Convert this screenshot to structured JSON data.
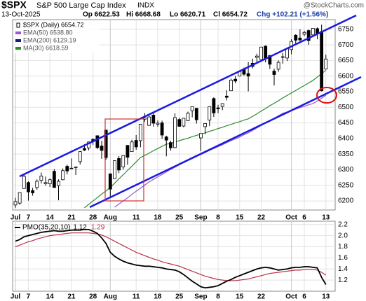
{
  "chart_data": [
    {
      "type": "candlestick",
      "title": "$SPX",
      "subtitle": "S&P 500 Large Cap Index",
      "exchange": "INDX",
      "source": "@StockCharts.com",
      "date": "13-Oct-2025",
      "quote": [
        "Op 6622.53",
        "Hi 6668.68",
        "Lo 6620.71",
        "Cl 6654.72",
        "Chg +102.21 (+1.56%)"
      ],
      "categories": [
        "Jul",
        null,
        null,
        "7",
        null,
        null,
        null,
        null,
        "14",
        null,
        null,
        null,
        null,
        "21",
        null,
        null,
        null,
        null,
        "28",
        null,
        null,
        null,
        "Aug",
        null,
        null,
        null,
        null,
        null,
        "11",
        null,
        null,
        null,
        null,
        "18",
        null,
        null,
        null,
        null,
        "25",
        null,
        null,
        null,
        null,
        "Sep",
        null,
        null,
        null,
        "8",
        null,
        null,
        null,
        null,
        "15",
        null,
        null,
        null,
        null,
        "22",
        null,
        null,
        null,
        null,
        null,
        null,
        "Oct",
        null,
        null,
        "6",
        null,
        null,
        null,
        null,
        "13"
      ],
      "series": [
        {
          "name": "$SPX (Daily) 6654.72",
          "color": "#000000",
          "open": [
            6187,
            6193,
            6240,
            6259,
            6233,
            6243,
            6266,
            6255,
            6255,
            6295,
            6249,
            6268,
            6311,
            6305,
            6307,
            6326,
            6368,
            6370,
            6397,
            6409,
            6376,
            6427,
            6287,
            6271,
            6336,
            6309,
            6378,
            6358,
            6394,
            6393,
            6462,
            6442,
            6475,
            6446,
            6450,
            6405,
            6387,
            6371,
            6461,
            6440,
            6457,
            6489,
            6497,
            6402,
            6438,
            6459,
            6528,
            6498,
            6503,
            6536,
            6553,
            6590,
            6600,
            6622,
            6608,
            6641,
            6660,
            6653,
            6696,
            6666,
            6616,
            6622,
            6662,
            6658,
            6685,
            6731,
            6722,
            6734,
            6746,
            6732,
            6752,
            6743,
            6622.53
          ],
          "high": [
            6210,
            6227,
            6284,
            6263,
            6242,
            6269,
            6291,
            6278,
            6272,
            6302,
            6269,
            6304,
            6316,
            6336,
            6310,
            6360,
            6382,
            6390,
            6401,
            6410,
            6393,
            6428,
            6288,
            6330,
            6344,
            6346,
            6379,
            6396,
            6411,
            6446,
            6481,
            6474,
            6481,
            6458,
            6457,
            6409,
            6393,
            6481,
            6467,
            6466,
            6486,
            6502,
            6497,
            6416,
            6449,
            6502,
            6532,
            6508,
            6513,
            6555,
            6592,
            6601,
            6616,
            6627,
            6645,
            6656,
            6672,
            6693,
            6698,
            6667,
            6624,
            6650,
            6674,
            6691,
            6718,
            6734,
            6750,
            6745,
            6749,
            6754,
            6756,
            6765,
            6668.68
          ],
          "low": [
            6178,
            6188,
            6240,
            6201,
            6217,
            6236,
            6256,
            6249,
            6245,
            6242,
            6202,
            6266,
            6285,
            6303,
            6283,
            6317,
            6360,
            6362,
            6380,
            6366,
            6335,
            6332,
            6212,
            6271,
            6289,
            6301,
            6316,
            6358,
            6364,
            6372,
            6454,
            6441,
            6438,
            6438,
            6399,
            6343,
            6361,
            6369,
            6438,
            6436,
            6457,
            6468,
            6448,
            6360,
            6414,
            6440,
            6469,
            6481,
            6491,
            6522,
            6552,
            6577,
            6600,
            6601,
            6551,
            6625,
            6644,
            6650,
            6644,
            6623,
            6570,
            6614,
            6640,
            6648,
            6670,
            6700,
            6708,
            6728,
            6700,
            6725,
            6718,
            6551,
            6620.71
          ],
          "close": [
            6198,
            6227,
            6279,
            6229,
            6226,
            6263,
            6280,
            6259,
            6268,
            6243,
            6263,
            6297,
            6296,
            6305,
            6309,
            6358,
            6363,
            6389,
            6390,
            6371,
            6362,
            6339,
            6238,
            6329,
            6299,
            6345,
            6340,
            6389,
            6373,
            6446,
            6466,
            6469,
            6449,
            6449,
            6411,
            6395,
            6370,
            6467,
            6439,
            6465,
            6481,
            6502,
            6460,
            6416,
            6448,
            6502,
            6482,
            6495,
            6512,
            6532,
            6587,
            6584,
            6615,
            6606,
            6600,
            6631,
            6664,
            6693,
            6656,
            6638,
            6605,
            6644,
            6661,
            6688,
            6711,
            6715,
            6716,
            6740,
            6714,
            6753,
            6735,
            6553,
            6654.72
          ]
        },
        {
          "name": "EMA(50) 6538.80",
          "color": "#9b59c8",
          "values": [
            null,
            null,
            null,
            null,
            null,
            null,
            null,
            null,
            null,
            null,
            null,
            null,
            null,
            null,
            null,
            null,
            null,
            null,
            null,
            null,
            null,
            null,
            null,
            6180,
            6190,
            6200,
            6210,
            6221,
            6231,
            6241,
            6251,
            6261,
            6269,
            6277,
            6285,
            6293,
            6301,
            6308,
            6316,
            6324,
            6330,
            6336,
            6343,
            6349,
            6355,
            6362,
            6368,
            6374,
            6380,
            6387,
            6393,
            6399,
            6405,
            6412,
            6418,
            6426,
            6434,
            6442,
            6450,
            6457,
            6465,
            6473,
            6481,
            6485,
            6490,
            6494,
            6499,
            6503,
            6508,
            6512,
            6520,
            6529,
            6538.8
          ]
        },
        {
          "name": "EMA(200) 6129.19",
          "color": "#1a1a80"
        },
        {
          "name": "MA(30) 6618.59",
          "color": "#2e8b2e",
          "values": [
            null,
            null,
            null,
            null,
            null,
            null,
            null,
            null,
            null,
            null,
            null,
            null,
            null,
            null,
            null,
            null,
            6178,
            6189,
            6200,
            6211,
            6222,
            6232,
            6243,
            6257,
            6271,
            6284,
            6298,
            6311,
            6325,
            6339,
            6346,
            6353,
            6361,
            6368,
            6375,
            6382,
            6384,
            6389,
            6393,
            6397,
            6401,
            6406,
            6410,
            6414,
            6418,
            6423,
            6427,
            6432,
            6436,
            6441,
            6445,
            6450,
            6454,
            6459,
            6463,
            6471,
            6479,
            6488,
            6496,
            6505,
            6513,
            6521,
            6530,
            6538,
            6546,
            6554,
            6562,
            6570,
            6578,
            6586,
            6597,
            6608,
            6618.59
          ]
        }
      ],
      "ylim": [
        6171,
        6781
      ],
      "yticks": [
        6200,
        6250,
        6300,
        6350,
        6400,
        6450,
        6500,
        6550,
        6600,
        6650,
        6700,
        6750
      ],
      "grid": true
    },
    {
      "type": "line",
      "title": "PMO(35,20,10)",
      "series": [
        {
          "name": "1.12",
          "color": "#000000",
          "values": [
            1.9,
            1.93,
            1.98,
            2.0,
            2.02,
            2.04,
            2.06,
            2.07,
            2.08,
            2.09,
            2.08,
            2.08,
            2.09,
            2.1,
            2.1,
            2.1,
            2.11,
            2.11,
            2.08,
            2.04,
            1.96,
            1.86,
            1.7,
            1.63,
            1.58,
            1.54,
            1.51,
            1.49,
            1.47,
            1.46,
            1.45,
            1.45,
            1.44,
            1.43,
            1.42,
            1.4,
            1.39,
            1.38,
            1.35,
            1.3,
            1.24,
            1.18,
            1.13,
            1.08,
            1.06,
            1.07,
            1.08,
            1.1,
            1.14,
            1.18,
            1.21,
            1.25,
            1.28,
            1.31,
            1.34,
            1.37,
            1.4,
            1.42,
            1.43,
            1.42,
            1.4,
            1.38,
            1.39,
            1.4,
            1.42,
            1.43,
            1.43,
            1.44,
            1.44,
            1.43,
            1.42,
            1.25,
            1.12
          ]
        },
        {
          "name": "1.29",
          "color": "#b8304a",
          "values": [
            1.8,
            1.83,
            1.86,
            1.89,
            1.91,
            1.94,
            1.96,
            1.98,
            2.0,
            2.01,
            2.02,
            2.03,
            2.04,
            2.05,
            2.05,
            2.05,
            2.05,
            2.05,
            2.04,
            2.03,
            2.01,
            1.98,
            1.94,
            1.9,
            1.86,
            1.82,
            1.78,
            1.74,
            1.7,
            1.67,
            1.64,
            1.61,
            1.58,
            1.56,
            1.53,
            1.51,
            1.49,
            1.47,
            1.45,
            1.42,
            1.39,
            1.36,
            1.33,
            1.3,
            1.27,
            1.25,
            1.23,
            1.21,
            1.2,
            1.19,
            1.19,
            1.19,
            1.2,
            1.21,
            1.22,
            1.24,
            1.26,
            1.28,
            1.3,
            1.32,
            1.33,
            1.34,
            1.35,
            1.36,
            1.37,
            1.38,
            1.38,
            1.39,
            1.39,
            1.39,
            1.38,
            1.34,
            1.29
          ]
        }
      ],
      "ylim": [
        1.0,
        2.26
      ],
      "yticks": [
        1.2,
        1.4,
        1.6,
        1.8,
        {
          "value": 2,
          "label": "2.0"
        },
        2.2
      ],
      "grid": true
    }
  ]
}
